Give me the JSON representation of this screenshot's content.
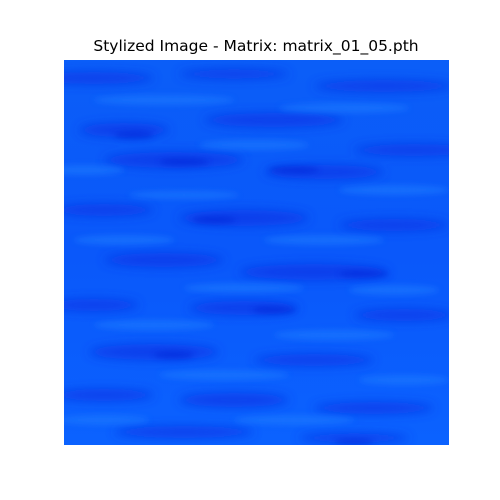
{
  "figure": {
    "title": "Stylized Image - Matrix: matrix_01_05.pth"
  },
  "image": {
    "description_colors": {
      "base": "#0a5cff",
      "light": "#0f6cff",
      "dark": "#0a3cf0"
    }
  }
}
